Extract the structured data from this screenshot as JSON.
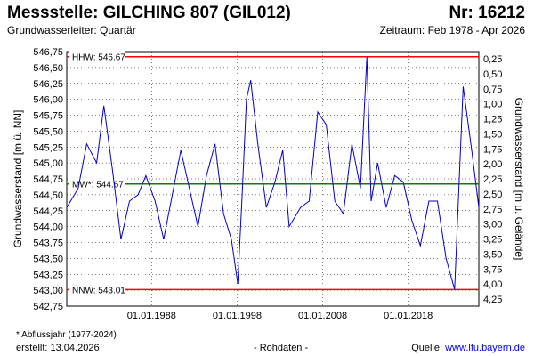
{
  "header": {
    "title": "Messstelle: GILCHING 807 (GIL012)",
    "number": "Nr: 16212",
    "subtitle": "Grundwasserleiter: Quartär",
    "period": "Zeitraum: Feb 1978 - Apr 2026"
  },
  "footer": {
    "note": "* Abflussjahr (1977-2024)",
    "created": "erstellt:  13.04.2026",
    "raw": "- Rohdaten -",
    "source_prefix": "Quelle: ",
    "source_link": "www.lfu.bayern.de"
  },
  "colors": {
    "series": "#0000cc",
    "hhw": "#ff0000",
    "nnw": "#ff0000",
    "mw": "#008000",
    "grid": "#000000"
  },
  "chart_data": {
    "type": "line",
    "ylabel": "Grundwasserstand [m ü. NN]",
    "y2label": "Grundwasserstand [m u. Gelände]",
    "ylim": [
      542.75,
      546.75
    ],
    "y_ticks": [
      "546,75",
      "546,50",
      "546,25",
      "546,00",
      "545,75",
      "545,50",
      "545,25",
      "545,00",
      "544,75",
      "544,50",
      "544,25",
      "544,00",
      "543,75",
      "543,50",
      "543,25",
      "543,00",
      "542,75"
    ],
    "y2_ticks": [
      "0,25",
      "0,50",
      "0,75",
      "1,00",
      "1,25",
      "1,50",
      "1,75",
      "2,00",
      "2,25",
      "2,50",
      "2,75",
      "3,00",
      "3,25",
      "3,50",
      "3,75",
      "4,00",
      "4,25"
    ],
    "xlim": [
      "1978-02",
      "2026-04"
    ],
    "x_ticks": [
      "01.01.1988",
      "01.01.1998",
      "01.01.2008",
      "01.01.2018"
    ],
    "reference_lines": [
      {
        "name": "HHW",
        "label": "HHW: 546.67",
        "value": 546.67
      },
      {
        "name": "MW",
        "label": "MW*: 544.67",
        "value": 544.67
      },
      {
        "name": "NNW",
        "label": "NNW: 543.01",
        "value": 543.01
      }
    ],
    "series": [
      {
        "x": [
          "1978-02",
          "1979-06",
          "1980-06",
          "1981-08",
          "1982-06",
          "1983-06",
          "1984-06",
          "1985-06",
          "1986-06",
          "1987-05",
          "1988-06",
          "1989-06",
          "1990-06",
          "1991-06",
          "1992-06",
          "1993-06",
          "1994-06",
          "1995-06",
          "1996-06",
          "1997-05",
          "1998-02",
          "1998-08",
          "1999-02",
          "1999-08",
          "2000-06",
          "2001-06",
          "2002-06",
          "2003-05",
          "2004-02",
          "2005-06",
          "2006-06",
          "2007-06",
          "2008-06",
          "2009-06",
          "2010-06",
          "2011-06",
          "2012-06",
          "2013-03",
          "2013-09",
          "2014-06",
          "2015-06",
          "2016-06",
          "2017-06",
          "2018-06",
          "2019-06",
          "2020-06",
          "2021-06",
          "2022-06",
          "2023-06",
          "2024-06",
          "2025-06",
          "2026-04"
        ],
        "y": [
          544.3,
          544.6,
          545.3,
          545.0,
          545.9,
          544.9,
          543.8,
          544.4,
          544.5,
          544.8,
          544.4,
          543.8,
          544.5,
          545.2,
          544.6,
          544.0,
          544.8,
          545.3,
          544.2,
          543.8,
          543.1,
          544.5,
          546.0,
          546.3,
          545.3,
          544.3,
          544.7,
          545.2,
          544.0,
          544.3,
          544.4,
          545.8,
          545.6,
          544.4,
          544.2,
          545.3,
          544.6,
          546.67,
          544.4,
          545.0,
          544.3,
          544.8,
          544.7,
          544.1,
          543.7,
          544.4,
          544.4,
          543.5,
          543.01,
          546.2,
          545.2,
          544.3
        ]
      }
    ]
  }
}
